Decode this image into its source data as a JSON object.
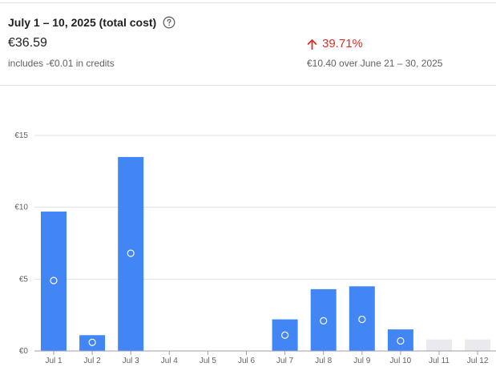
{
  "summary": {
    "period_title": "July 1 – 10, 2025 (total cost)",
    "help_icon": "help-circle-icon",
    "total_cost": "€36.59",
    "credits_note": "includes -€0.01 in credits",
    "change_icon": "arrow-up-icon",
    "change_percent": "39.71%",
    "comparison_note": "€10.40 over June 21 – 30, 2025"
  },
  "colors": {
    "bar": "#4285f4",
    "future_bar": "#e8eaed",
    "increase": "#d93025",
    "grid": "#e0e0e0",
    "axis_text": "#5f6368"
  },
  "chart_data": {
    "type": "bar",
    "title": "",
    "xlabel": "",
    "ylabel": "",
    "ylim": [
      0,
      15
    ],
    "y_ticks": [
      {
        "value": 0,
        "label": "€0"
      },
      {
        "value": 5,
        "label": "€5"
      },
      {
        "value": 10,
        "label": "€10"
      },
      {
        "value": 15,
        "label": "€15"
      }
    ],
    "grid": true,
    "categories": [
      "Jul 1",
      "Jul 2",
      "Jul 3",
      "Jul 4",
      "Jul 5",
      "Jul 6",
      "Jul 7",
      "Jul 8",
      "Jul 9",
      "Jul 10",
      "Jul 11",
      "Jul 12"
    ],
    "values": [
      9.7,
      1.1,
      13.5,
      0,
      0,
      0,
      2.2,
      4.3,
      4.5,
      1.5,
      null,
      null
    ],
    "marker_values": [
      4.9,
      0.6,
      6.8,
      null,
      null,
      null,
      1.1,
      2.1,
      2.2,
      0.7,
      null,
      null
    ],
    "forecast_values": [
      null,
      null,
      null,
      null,
      null,
      null,
      null,
      null,
      null,
      null,
      0.8,
      0.8
    ]
  }
}
